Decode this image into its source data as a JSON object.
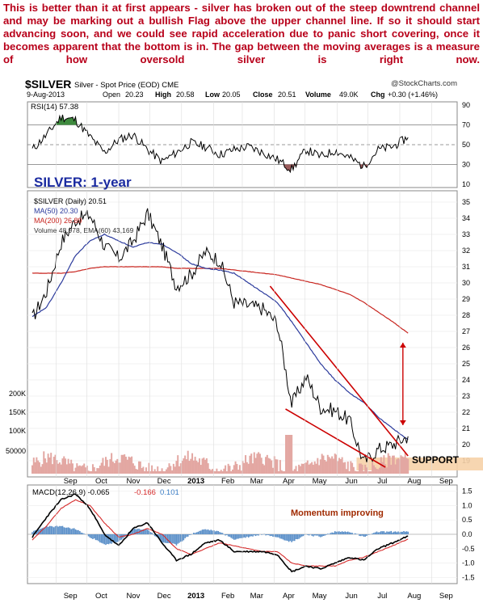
{
  "commentary": "This is better than it at first appears - silver has broken out of the steep downtrend channel and may be marking out a bullish Flag above the upper channel line. If so it should start advancing soon, and we could see rapid acceleration due to panic short covering, once it becomes apparent that the bottom is in. The gap between the moving averages is a measure of how oversold silver is right now.",
  "header": {
    "symbol": "$SILVER",
    "description": "Silver - Spot Price (EOD) CME",
    "source": "@StockCharts.com",
    "date": "9-Aug-2013",
    "open_label": "Open",
    "open": "20.23",
    "high_label": "High",
    "high": "20.58",
    "low_label": "Low",
    "low": "20.05",
    "close_label": "Close",
    "close": "20.51",
    "volume_label": "Volume",
    "volume": "49.0K",
    "chg_label": "Chg",
    "chg": "+0.30 (+1.46%)"
  },
  "annotations": {
    "title": "SILVER: 1-year",
    "support": "SUPPORT",
    "momentum": "Momentum improving"
  },
  "colors": {
    "commentary": "#b8001a",
    "price": "#000000",
    "ma50": "#2b3a9c",
    "ma200": "#c8251f",
    "channel": "#cc0000",
    "support_band": "#f6d1a8",
    "volume": "#e3a7a2",
    "rsi_fill": "#3e8a3e",
    "macd": "#000000",
    "signal": "#d62a2a",
    "histogram": "#5a8fc8",
    "title": "#1a2aa0"
  },
  "chart_data": [
    {
      "type": "line",
      "panel": "RSI",
      "legend": [
        "RSI(14) 57.38"
      ],
      "ylim": [
        10,
        90
      ],
      "yticks": [
        10,
        30,
        50,
        70,
        90
      ],
      "reference_lines": [
        30,
        50,
        70
      ],
      "x": [
        "2012-08-09",
        "2012-08-23",
        "2012-09-06",
        "2012-09-20",
        "2012-10-04",
        "2012-10-18",
        "2012-11-01",
        "2012-11-15",
        "2012-11-29",
        "2012-12-13",
        "2012-12-27",
        "2013-01-10",
        "2013-01-24",
        "2013-02-07",
        "2013-02-21",
        "2013-03-07",
        "2013-03-21",
        "2013-04-04",
        "2013-04-18",
        "2013-05-02",
        "2013-05-16",
        "2013-05-30",
        "2013-06-13",
        "2013-06-27",
        "2013-07-11",
        "2013-07-25",
        "2013-08-09"
      ],
      "values": [
        45,
        60,
        78,
        75,
        58,
        42,
        55,
        60,
        45,
        33,
        42,
        52,
        48,
        40,
        45,
        48,
        42,
        35,
        25,
        45,
        38,
        44,
        37,
        28,
        45,
        48,
        57.38
      ]
    },
    {
      "type": "line",
      "panel": "Price",
      "title": "$SILVER (Daily) 20.51",
      "legend": [
        "$SILVER (Daily) 20.51",
        "MA(50) 20.30",
        "MA(200) 26.89",
        "Volume 48,978, EMA(60) 43,169"
      ],
      "ylim": [
        18.2,
        35.5
      ],
      "yticks": [
        19,
        20,
        21,
        22,
        23,
        24,
        25,
        26,
        27,
        28,
        29,
        30,
        31,
        32,
        33,
        34,
        35
      ],
      "volume_ticks": [
        "50000",
        "100K",
        "150K",
        "200K"
      ],
      "x_months": [
        "Sep",
        "Oct",
        "Nov",
        "Dec",
        "2013",
        "Feb",
        "Mar",
        "Apr",
        "May",
        "Jun",
        "Jul",
        "Aug",
        "Sep"
      ],
      "x": [
        "2012-08-09",
        "2012-08-23",
        "2012-09-06",
        "2012-09-20",
        "2012-10-04",
        "2012-10-18",
        "2012-11-01",
        "2012-11-15",
        "2012-11-29",
        "2012-12-13",
        "2012-12-27",
        "2013-01-10",
        "2013-01-24",
        "2013-02-07",
        "2013-02-21",
        "2013-03-07",
        "2013-03-21",
        "2013-04-04",
        "2013-04-18",
        "2013-05-02",
        "2013-05-16",
        "2013-05-30",
        "2013-06-13",
        "2013-06-27",
        "2013-07-11",
        "2013-07-25",
        "2013-08-09"
      ],
      "series": [
        {
          "name": "$SILVER",
          "values": [
            27.8,
            29.5,
            32.5,
            33.9,
            34.2,
            32.3,
            31.5,
            32.6,
            34.3,
            32.3,
            29.8,
            30.5,
            31.9,
            31.4,
            28.8,
            28.6,
            28.4,
            27.5,
            22.5,
            24.2,
            22.3,
            22.1,
            21.5,
            18.9,
            19.7,
            20.0,
            20.51
          ]
        },
        {
          "name": "MA(50)",
          "values": [
            27.9,
            28.5,
            30.0,
            31.7,
            32.6,
            33.0,
            32.6,
            32.2,
            32.5,
            32.4,
            31.9,
            31.2,
            30.9,
            30.8,
            30.6,
            30.0,
            29.4,
            28.8,
            27.6,
            26.3,
            25.0,
            24.0,
            23.2,
            22.6,
            21.7,
            21.0,
            20.3
          ]
        },
        {
          "name": "MA(200)",
          "values": [
            30.6,
            30.6,
            30.6,
            30.7,
            30.9,
            31.0,
            31.0,
            31.0,
            31.0,
            31.0,
            30.9,
            30.9,
            30.9,
            30.9,
            30.8,
            30.7,
            30.6,
            30.5,
            30.3,
            30.1,
            29.9,
            29.6,
            29.3,
            28.8,
            28.2,
            27.6,
            26.89
          ]
        }
      ],
      "channel_lines": [
        {
          "name": "upper",
          "from": [
            "2013-03-28",
            29.8
          ],
          "to": [
            "2013-08-09",
            19.3
          ]
        },
        {
          "name": "lower",
          "from": [
            "2013-04-12",
            22.2
          ],
          "to": [
            "2013-07-18",
            18.6
          ]
        }
      ]
    },
    {
      "type": "line",
      "panel": "MACD",
      "legend": [
        "MACD(12,26,9) -0.065",
        "-0.166",
        "0.101"
      ],
      "ylim": [
        -1.6,
        1.6
      ],
      "yticks": [
        -1.5,
        -1.0,
        -0.5,
        0.0,
        0.5,
        1.0,
        1.5
      ],
      "x": [
        "2012-08-09",
        "2012-08-23",
        "2012-09-06",
        "2012-09-20",
        "2012-10-04",
        "2012-10-18",
        "2012-11-01",
        "2012-11-15",
        "2012-11-29",
        "2012-12-13",
        "2012-12-27",
        "2013-01-10",
        "2013-01-24",
        "2013-02-07",
        "2013-02-21",
        "2013-03-07",
        "2013-03-21",
        "2013-04-04",
        "2013-04-18",
        "2013-05-02",
        "2013-05-16",
        "2013-05-30",
        "2013-06-13",
        "2013-06-27",
        "2013-07-11",
        "2013-07-25",
        "2013-08-09"
      ],
      "series": [
        {
          "name": "MACD(12,26,9)",
          "values": [
            -0.1,
            0.6,
            1.2,
            1.4,
            0.9,
            0.0,
            -0.4,
            0.2,
            0.4,
            -0.3,
            -0.9,
            -0.7,
            -0.3,
            -0.2,
            -0.6,
            -0.6,
            -0.6,
            -0.7,
            -1.3,
            -1.1,
            -1.2,
            -1.0,
            -0.8,
            -0.9,
            -0.5,
            -0.3,
            -0.065
          ]
        },
        {
          "name": "Signal",
          "values": [
            -0.2,
            0.3,
            0.9,
            1.2,
            1.0,
            0.4,
            -0.1,
            0.0,
            0.2,
            0.0,
            -0.5,
            -0.7,
            -0.5,
            -0.3,
            -0.4,
            -0.5,
            -0.6,
            -0.6,
            -1.0,
            -1.1,
            -1.1,
            -1.1,
            -0.9,
            -0.8,
            -0.6,
            -0.4,
            -0.166
          ]
        }
      ]
    }
  ]
}
